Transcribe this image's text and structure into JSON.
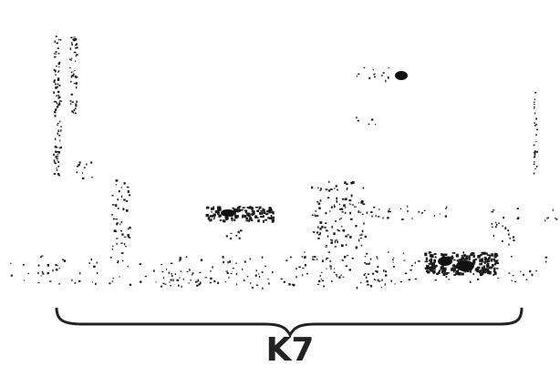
{
  "label": "K7"
}
